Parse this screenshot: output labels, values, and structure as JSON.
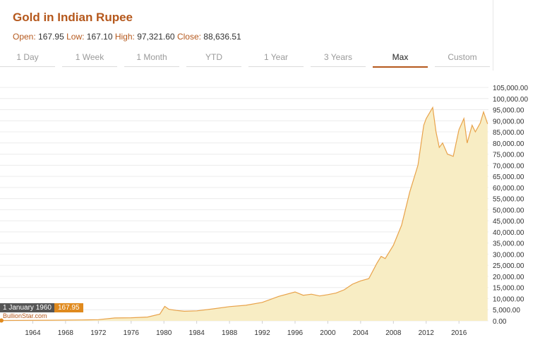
{
  "header": {
    "title": "Gold in Indian Rupee",
    "open_label": "Open:",
    "open_value": "167.95",
    "low_label": "Low:",
    "low_value": "167.10",
    "high_label": "High:",
    "high_value": "97,321.60",
    "close_label": "Close:",
    "close_value": "88,636.51"
  },
  "tabs": [
    "1 Day",
    "1 Week",
    "1 Month",
    "YTD",
    "1 Year",
    "3 Years",
    "Max",
    "Custom"
  ],
  "active_tab": "Max",
  "tooltip": {
    "date": "1 January 1960",
    "value": "167.95"
  },
  "brand": "BullionStar.com",
  "colors": {
    "accent": "#b5581c",
    "line": "#e8a24a",
    "fill": "#f8edc4",
    "tooltip_bg": "#555555",
    "tooltip_value_bg": "#e08a1e"
  },
  "chart_data": {
    "type": "area",
    "xlabel": "",
    "ylabel": "",
    "x_ticks": [
      "1964",
      "1968",
      "1972",
      "1976",
      "1980",
      "1984",
      "1988",
      "1992",
      "1996",
      "2000",
      "2004",
      "2008",
      "2012",
      "2016"
    ],
    "y_ticks": [
      "0.00",
      "5,000.00",
      "10,000.00",
      "15,000.00",
      "20,000.00",
      "25,000.00",
      "30,000.00",
      "35,000.00",
      "40,000.00",
      "45,000.00",
      "50,000.00",
      "55,000.00",
      "60,000.00",
      "65,000.00",
      "70,000.00",
      "75,000.00",
      "80,000.00",
      "85,000.00",
      "90,000.00",
      "95,000.00",
      "100,000.00",
      "105,000.00"
    ],
    "xlim": [
      1960,
      2019.6
    ],
    "ylim": [
      0,
      105000
    ],
    "grid": true,
    "y_axis_side": "right",
    "series": [
      {
        "x": [
          1960,
          1966,
          1970,
          1972,
          1974,
          1976,
          1978,
          1979.5,
          1980.1,
          1980.6,
          1981.5,
          1982.5,
          1984,
          1986,
          1988,
          1990,
          1992,
          1994,
          1996,
          1997,
          1998,
          1999,
          2000,
          2001,
          2002,
          2003,
          2004,
          2005,
          2006,
          2006.5,
          2007,
          2008,
          2009,
          2010,
          2011,
          2011.7,
          2012,
          2012.8,
          2013.2,
          2013.6,
          2014,
          2014.6,
          2015.3,
          2016,
          2016.6,
          2017,
          2017.6,
          2018,
          2018.6,
          2019,
          2019.5
        ],
        "y": [
          168,
          300,
          400,
          550,
          1300,
          1400,
          1700,
          3000,
          6500,
          5200,
          4700,
          4300,
          4500,
          5400,
          6400,
          7000,
          8300,
          11000,
          13000,
          11500,
          12000,
          11200,
          11800,
          12500,
          14000,
          16500,
          18000,
          19000,
          26000,
          29000,
          28000,
          34000,
          43000,
          58000,
          70000,
          88000,
          91000,
          96000,
          85000,
          78000,
          80000,
          75000,
          74000,
          86000,
          91000,
          80000,
          88000,
          85000,
          89000,
          94000,
          88600
        ]
      }
    ]
  }
}
